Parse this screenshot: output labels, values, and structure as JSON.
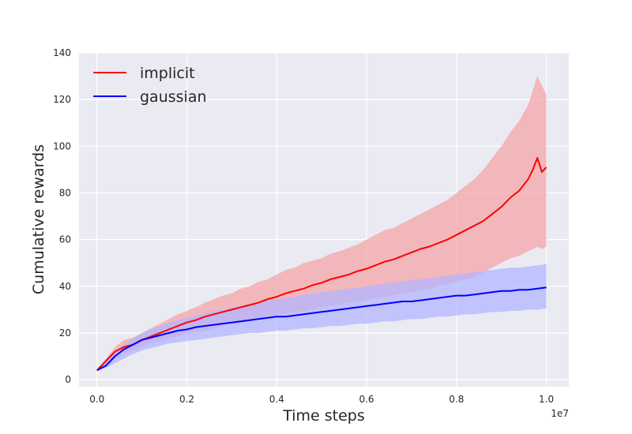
{
  "chart_data": {
    "type": "line",
    "xlabel": "Time steps",
    "ylabel": "Cumulative rewards",
    "x_offset_label": "1e7",
    "xlim": [
      -0.04,
      1.05
    ],
    "ylim": [
      -3,
      140
    ],
    "xticks": [
      0.0,
      0.2,
      0.4,
      0.6,
      0.8,
      1.0
    ],
    "xtick_labels": [
      "0.0",
      "0.2",
      "0.4",
      "0.6",
      "0.8",
      "1.0"
    ],
    "yticks": [
      0,
      20,
      40,
      60,
      80,
      100,
      120,
      140
    ],
    "ytick_labels": [
      "0",
      "20",
      "40",
      "60",
      "80",
      "100",
      "120",
      "140"
    ],
    "grid": true,
    "legend_position": "top-left",
    "series": [
      {
        "name": "implicit",
        "color": "#ff0000",
        "band_color": "#f4a6a8",
        "x": [
          0.0,
          0.02,
          0.04,
          0.06,
          0.08,
          0.1,
          0.12,
          0.14,
          0.16,
          0.18,
          0.2,
          0.22,
          0.24,
          0.26,
          0.28,
          0.3,
          0.32,
          0.34,
          0.36,
          0.38,
          0.4,
          0.42,
          0.44,
          0.46,
          0.48,
          0.5,
          0.52,
          0.54,
          0.56,
          0.58,
          0.6,
          0.62,
          0.64,
          0.66,
          0.68,
          0.7,
          0.72,
          0.74,
          0.76,
          0.78,
          0.8,
          0.82,
          0.84,
          0.86,
          0.88,
          0.9,
          0.92,
          0.94,
          0.96,
          0.97,
          0.98,
          0.99,
          1.0
        ],
        "values": [
          4,
          8,
          12,
          14,
          15,
          17,
          18.5,
          20,
          21.5,
          23,
          24.5,
          25.5,
          27,
          28,
          29,
          30,
          31,
          32,
          33,
          34.5,
          35.5,
          37,
          38,
          39,
          40.5,
          41.5,
          43,
          44,
          45,
          46.5,
          47.5,
          49,
          50.5,
          51.5,
          53,
          54.5,
          56,
          57,
          58.5,
          60,
          62,
          64,
          66,
          68,
          71,
          74,
          78,
          81,
          86,
          90,
          95,
          89,
          91
        ],
        "lower": [
          4,
          6,
          9,
          11,
          12.5,
          14,
          15.5,
          16.5,
          17.5,
          18.5,
          19.5,
          20.5,
          21,
          22,
          23,
          24,
          25,
          25.5,
          26.5,
          27,
          27.5,
          28,
          29,
          29.5,
          30,
          31,
          31.5,
          32,
          33,
          33.5,
          34,
          35,
          35.5,
          36,
          37,
          37.5,
          38.5,
          39,
          40,
          41,
          42,
          43,
          44,
          46,
          48,
          50,
          52,
          53,
          55,
          56,
          57,
          56,
          57
        ],
        "upper": [
          4.5,
          9,
          14,
          17,
          18,
          20,
          22,
          24,
          26,
          28,
          29.5,
          31,
          33,
          34.5,
          36,
          37,
          39,
          40,
          42,
          43,
          45,
          47,
          48,
          50,
          51,
          52,
          54,
          55,
          56.5,
          58,
          60,
          62,
          64,
          65,
          67,
          69,
          71,
          73,
          75,
          77,
          80,
          83,
          86,
          90,
          95,
          100,
          106,
          111,
          118,
          124,
          130,
          126,
          122
        ]
      },
      {
        "name": "gaussian",
        "color": "#0000ff",
        "band_color": "#b3b6ff",
        "x": [
          0.0,
          0.02,
          0.04,
          0.06,
          0.08,
          0.1,
          0.12,
          0.14,
          0.16,
          0.18,
          0.2,
          0.22,
          0.24,
          0.26,
          0.28,
          0.3,
          0.32,
          0.34,
          0.36,
          0.38,
          0.4,
          0.42,
          0.44,
          0.46,
          0.48,
          0.5,
          0.52,
          0.54,
          0.56,
          0.58,
          0.6,
          0.62,
          0.64,
          0.66,
          0.68,
          0.7,
          0.72,
          0.74,
          0.76,
          0.78,
          0.8,
          0.82,
          0.84,
          0.86,
          0.88,
          0.9,
          0.92,
          0.94,
          0.96,
          0.98,
          1.0
        ],
        "values": [
          4,
          6,
          10,
          13,
          15,
          17,
          18,
          19,
          20,
          21,
          21.5,
          22.5,
          23,
          23.5,
          24,
          24.5,
          25,
          25.5,
          26,
          26.5,
          27,
          27,
          27.5,
          28,
          28.5,
          29,
          29.5,
          30,
          30.5,
          31,
          31.5,
          32,
          32.5,
          33,
          33.5,
          33.5,
          34,
          34.5,
          35,
          35.5,
          36,
          36,
          36.5,
          37,
          37.5,
          38,
          38,
          38.5,
          38.5,
          39,
          39.5
        ],
        "lower": [
          4,
          5,
          7,
          9,
          11,
          12.5,
          13.5,
          14.5,
          15.5,
          16,
          16.5,
          17,
          17.5,
          18,
          18.5,
          19,
          19.5,
          20,
          20,
          20.5,
          21,
          21,
          21.5,
          22,
          22,
          22.5,
          23,
          23,
          23.5,
          24,
          24,
          24.5,
          25,
          25,
          25.5,
          26,
          26,
          26.5,
          27,
          27,
          27.5,
          28,
          28,
          28.5,
          29,
          29,
          29.5,
          29.5,
          30,
          30,
          30.5
        ],
        "upper": [
          4.5,
          7,
          12,
          15,
          17.5,
          20,
          21.5,
          23,
          24.5,
          25.5,
          26.5,
          27.5,
          28.5,
          29.5,
          30,
          31,
          31.5,
          32.5,
          33,
          34,
          34.5,
          35,
          35.5,
          36.5,
          37,
          37.5,
          38,
          38.5,
          39,
          39.5,
          40,
          40.5,
          41,
          41.5,
          42,
          42.5,
          43,
          43.5,
          44,
          44.5,
          45,
          45.5,
          46,
          46.5,
          47,
          47.5,
          48,
          48,
          48.5,
          49,
          49.5
        ]
      }
    ]
  }
}
